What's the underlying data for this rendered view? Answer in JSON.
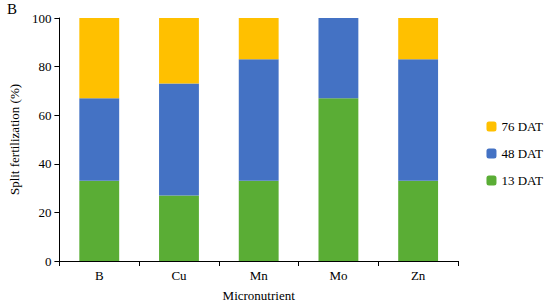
{
  "chart_data": {
    "type": "bar",
    "title": "B",
    "x_label": "Micronutrient",
    "y_label": "Split fertilization (%)",
    "categories": [
      "B",
      "Cu",
      "Mn",
      "Mo",
      "Zn"
    ],
    "series": [
      {
        "name": "13 DAT",
        "color": "#5aad35",
        "values": [
          33,
          27,
          33,
          67,
          33
        ]
      },
      {
        "name": "48 DAT",
        "color": "#4472c4",
        "values": [
          34,
          46,
          50,
          33,
          50
        ]
      },
      {
        "name": "76 DAT",
        "color": "#ffc000",
        "values": [
          33,
          27,
          17,
          0,
          17
        ]
      }
    ],
    "ylim": [
      0,
      100
    ],
    "yticks": [
      0,
      20,
      40,
      60,
      80,
      100
    ],
    "stacked": true,
    "grid": false,
    "legend": "right"
  }
}
